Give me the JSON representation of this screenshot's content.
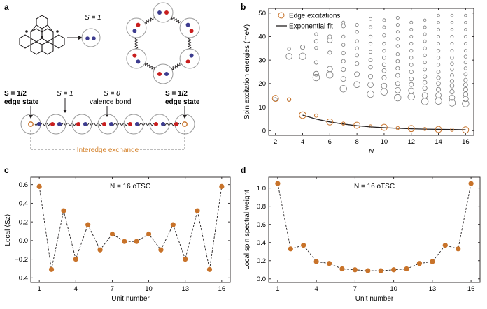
{
  "colors": {
    "accent": "#c8732a",
    "blue": "#3d3c8f",
    "red": "#c81e1e",
    "gray": "#7a7a7a",
    "exch": "#d4822c"
  },
  "panel_a": {
    "label": "a",
    "s1_label": "S = 1",
    "left_edge_label": [
      "S = 1/2",
      "edge state"
    ],
    "s1_chain_label": "S = 1",
    "valence_label": [
      "S = 0",
      "valence bond"
    ],
    "right_edge_label": [
      "S = 1/2",
      "edge state"
    ],
    "interedge_label": "Interedge exchange"
  },
  "chart_data": [
    {
      "panel": "b",
      "type": "scatter",
      "xlabel": "N",
      "ylabel": "Spin excitation energies (meV)",
      "xlim": [
        1.5,
        16.6
      ],
      "ylim": [
        -2,
        52
      ],
      "xticks": [
        2,
        4,
        6,
        8,
        10,
        12,
        14,
        16
      ],
      "yticks": [
        0,
        10,
        20,
        30,
        40,
        50
      ],
      "legend": {
        "placement": "top-left",
        "entries": [
          "Edge excitations",
          "Exponential fit"
        ]
      },
      "series": [
        {
          "name": "Edge excitations",
          "x": [
            2,
            3,
            4,
            5,
            6,
            7,
            8,
            9,
            10,
            11,
            12,
            13,
            14,
            15,
            16
          ],
          "y": [
            13.7,
            13.2,
            6.6,
            6.4,
            3.7,
            3.0,
            2.3,
            1.8,
            1.4,
            1.1,
            0.9,
            0.7,
            0.5,
            0.4,
            0.3
          ],
          "w": [
            0.9,
            0.4,
            1.0,
            0.35,
            0.9,
            0.3,
            0.9,
            0.3,
            0.9,
            0.3,
            0.9,
            0.3,
            0.9,
            0.3,
            0.9
          ]
        },
        {
          "name": "Exponential fit",
          "x": [
            4,
            5,
            6,
            7,
            8,
            9,
            10,
            11,
            12,
            13,
            14,
            15,
            16
          ],
          "y": [
            6.6,
            4.9,
            3.7,
            2.8,
            2.1,
            1.6,
            1.25,
            1.0,
            0.8,
            0.65,
            0.55,
            0.45,
            0.38
          ]
        }
      ],
      "bulk_excitations": [
        [
          2,
          13.3,
          0.4
        ],
        [
          3,
          31.6,
          0.8
        ],
        [
          3,
          34.8,
          0.3
        ],
        [
          3,
          13.2,
          0.3
        ],
        [
          4,
          31.6,
          0.9
        ],
        [
          4,
          35.5,
          0.5
        ],
        [
          5,
          22.6,
          0.9
        ],
        [
          5,
          24.2,
          0.6
        ],
        [
          5,
          29.0,
          0.4
        ],
        [
          5,
          35.2,
          0.3
        ],
        [
          5,
          38.0,
          0.4
        ],
        [
          5,
          41.0,
          0.3
        ],
        [
          6,
          23.7,
          0.9
        ],
        [
          6,
          26.2,
          0.7
        ],
        [
          6,
          33.2,
          0.4
        ],
        [
          6,
          38.4,
          0.6
        ],
        [
          6,
          40.0,
          0.4
        ],
        [
          7,
          17.8,
          0.9
        ],
        [
          7,
          22.0,
          0.6
        ],
        [
          7,
          26.0,
          0.5
        ],
        [
          7,
          29.5,
          0.4
        ],
        [
          7,
          33.0,
          0.4
        ],
        [
          7,
          36.5,
          0.3
        ],
        [
          7,
          40.0,
          0.3
        ],
        [
          7,
          44.5,
          0.4
        ],
        [
          7,
          46.0,
          0.25
        ],
        [
          8,
          19.6,
          0.8
        ],
        [
          8,
          24.0,
          0.6
        ],
        [
          8,
          28.5,
          0.4
        ],
        [
          8,
          32.0,
          0.35
        ],
        [
          8,
          35.0,
          0.3
        ],
        [
          8,
          38.0,
          0.3
        ],
        [
          8,
          42.0,
          0.3
        ],
        [
          8,
          45.0,
          0.25
        ],
        [
          9,
          15.5,
          0.9
        ],
        [
          9,
          19.5,
          0.7
        ],
        [
          9,
          23.0,
          0.5
        ],
        [
          9,
          27.0,
          0.4
        ],
        [
          9,
          30.0,
          0.35
        ],
        [
          9,
          33.5,
          0.3
        ],
        [
          9,
          37.0,
          0.3
        ],
        [
          9,
          40.0,
          0.3
        ],
        [
          9,
          44.0,
          0.3
        ],
        [
          9,
          47.5,
          0.25
        ],
        [
          10,
          16.5,
          0.9
        ],
        [
          10,
          19.0,
          0.7
        ],
        [
          10,
          22.5,
          0.5
        ],
        [
          10,
          25.5,
          0.45
        ],
        [
          10,
          28.0,
          0.4
        ],
        [
          10,
          31.0,
          0.35
        ],
        [
          10,
          34.0,
          0.3
        ],
        [
          10,
          37.0,
          0.3
        ],
        [
          10,
          40.5,
          0.3
        ],
        [
          10,
          44.0,
          0.25
        ],
        [
          10,
          47.0,
          0.25
        ],
        [
          11,
          14.0,
          0.9
        ],
        [
          11,
          17.2,
          0.7
        ],
        [
          11,
          20.0,
          0.5
        ],
        [
          11,
          23.5,
          0.45
        ],
        [
          11,
          26.5,
          0.4
        ],
        [
          11,
          29.5,
          0.35
        ],
        [
          11,
          32.5,
          0.3
        ],
        [
          11,
          36.0,
          0.3
        ],
        [
          11,
          39.0,
          0.3
        ],
        [
          11,
          42.0,
          0.25
        ],
        [
          11,
          45.0,
          0.25
        ],
        [
          11,
          48.0,
          0.25
        ],
        [
          12,
          14.4,
          0.9
        ],
        [
          12,
          17.0,
          0.7
        ],
        [
          12,
          19.6,
          0.5
        ],
        [
          12,
          22.0,
          0.45
        ],
        [
          12,
          25.0,
          0.4
        ],
        [
          12,
          28.0,
          0.35
        ],
        [
          12,
          31.0,
          0.3
        ],
        [
          12,
          34.0,
          0.3
        ],
        [
          12,
          37.0,
          0.3
        ],
        [
          12,
          40.0,
          0.25
        ],
        [
          12,
          43.0,
          0.25
        ],
        [
          12,
          46.0,
          0.25
        ],
        [
          13,
          12.4,
          0.9
        ],
        [
          13,
          15.0,
          0.7
        ],
        [
          13,
          18.0,
          0.5
        ],
        [
          13,
          20.5,
          0.45
        ],
        [
          13,
          23.0,
          0.4
        ],
        [
          13,
          26.0,
          0.35
        ],
        [
          13,
          29.0,
          0.3
        ],
        [
          13,
          32.0,
          0.3
        ],
        [
          13,
          35.0,
          0.3
        ],
        [
          13,
          38.0,
          0.25
        ],
        [
          13,
          41.0,
          0.25
        ],
        [
          13,
          44.0,
          0.25
        ],
        [
          13,
          47.0,
          0.2
        ],
        [
          14,
          12.6,
          0.9
        ],
        [
          14,
          15.0,
          0.7
        ],
        [
          14,
          17.5,
          0.5
        ],
        [
          14,
          20.0,
          0.45
        ],
        [
          14,
          22.5,
          0.4
        ],
        [
          14,
          25.0,
          0.35
        ],
        [
          14,
          28.0,
          0.3
        ],
        [
          14,
          31.0,
          0.3
        ],
        [
          14,
          34.0,
          0.3
        ],
        [
          14,
          37.0,
          0.25
        ],
        [
          14,
          40.0,
          0.25
        ],
        [
          14,
          43.0,
          0.25
        ],
        [
          14,
          46.0,
          0.2
        ],
        [
          14,
          49.0,
          0.2
        ],
        [
          15,
          11.8,
          0.9
        ],
        [
          15,
          14.0,
          0.7
        ],
        [
          15,
          16.5,
          0.5
        ],
        [
          15,
          19.0,
          0.45
        ],
        [
          15,
          21.0,
          0.4
        ],
        [
          15,
          23.5,
          0.35
        ],
        [
          15,
          26.0,
          0.3
        ],
        [
          15,
          28.5,
          0.3
        ],
        [
          15,
          31.0,
          0.3
        ],
        [
          15,
          34.0,
          0.25
        ],
        [
          15,
          37.0,
          0.25
        ],
        [
          15,
          40.0,
          0.25
        ],
        [
          15,
          43.0,
          0.2
        ],
        [
          15,
          46.0,
          0.2
        ],
        [
          15,
          49.0,
          0.2
        ],
        [
          16,
          11.5,
          0.9
        ],
        [
          16,
          13.5,
          0.7
        ],
        [
          16,
          15.5,
          0.55
        ],
        [
          16,
          17.5,
          0.5
        ],
        [
          16,
          19.5,
          0.45
        ],
        [
          16,
          21.5,
          0.4
        ],
        [
          16,
          24.0,
          0.35
        ],
        [
          16,
          26.5,
          0.3
        ],
        [
          16,
          29.0,
          0.3
        ],
        [
          16,
          31.5,
          0.3
        ],
        [
          16,
          34.0,
          0.25
        ],
        [
          16,
          37.0,
          0.25
        ],
        [
          16,
          40.0,
          0.25
        ],
        [
          16,
          43.0,
          0.2
        ],
        [
          16,
          46.0,
          0.2
        ],
        [
          16,
          49.0,
          0.2
        ]
      ]
    },
    {
      "panel": "c",
      "type": "line",
      "annotation": "N = 16 oTSC",
      "xlabel": "Unit number",
      "ylabel": "Local ⟨Sz⟩",
      "xlim": [
        0.3,
        16.7
      ],
      "ylim": [
        -0.45,
        0.68
      ],
      "xticks": [
        1,
        4,
        7,
        10,
        13,
        16
      ],
      "yticks": [
        -0.4,
        -0.2,
        0.0,
        0.2,
        0.4,
        0.6
      ],
      "yticklabels": [
        "−0.4",
        "−0.2",
        "0.0",
        "0.2",
        "0.4",
        "0.6"
      ],
      "x": [
        1,
        2,
        3,
        4,
        5,
        6,
        7,
        8,
        9,
        10,
        11,
        12,
        13,
        14,
        15,
        16
      ],
      "y": [
        0.58,
        -0.31,
        0.32,
        -0.2,
        0.17,
        -0.1,
        0.07,
        -0.01,
        -0.01,
        0.07,
        -0.1,
        0.17,
        -0.2,
        0.32,
        -0.31,
        0.58
      ]
    },
    {
      "panel": "d",
      "type": "line",
      "annotation": "N = 16 oTSC",
      "xlabel": "Unit number",
      "ylabel": "Local spin spectral weight",
      "xlim": [
        0.3,
        16.7
      ],
      "ylim": [
        -0.04,
        1.12
      ],
      "xticks": [
        1,
        4,
        7,
        10,
        13,
        16
      ],
      "yticks": [
        0.0,
        0.2,
        0.4,
        0.6,
        0.8,
        1.0
      ],
      "yticklabels": [
        "0.0",
        "0.2",
        "0.4",
        "0.6",
        "0.8",
        "1.0"
      ],
      "x": [
        1,
        2,
        3,
        4,
        5,
        6,
        7,
        8,
        9,
        10,
        11,
        12,
        13,
        14,
        15,
        16
      ],
      "y": [
        1.05,
        0.33,
        0.37,
        0.19,
        0.17,
        0.11,
        0.1,
        0.09,
        0.09,
        0.1,
        0.11,
        0.17,
        0.19,
        0.37,
        0.33,
        1.05
      ]
    }
  ]
}
